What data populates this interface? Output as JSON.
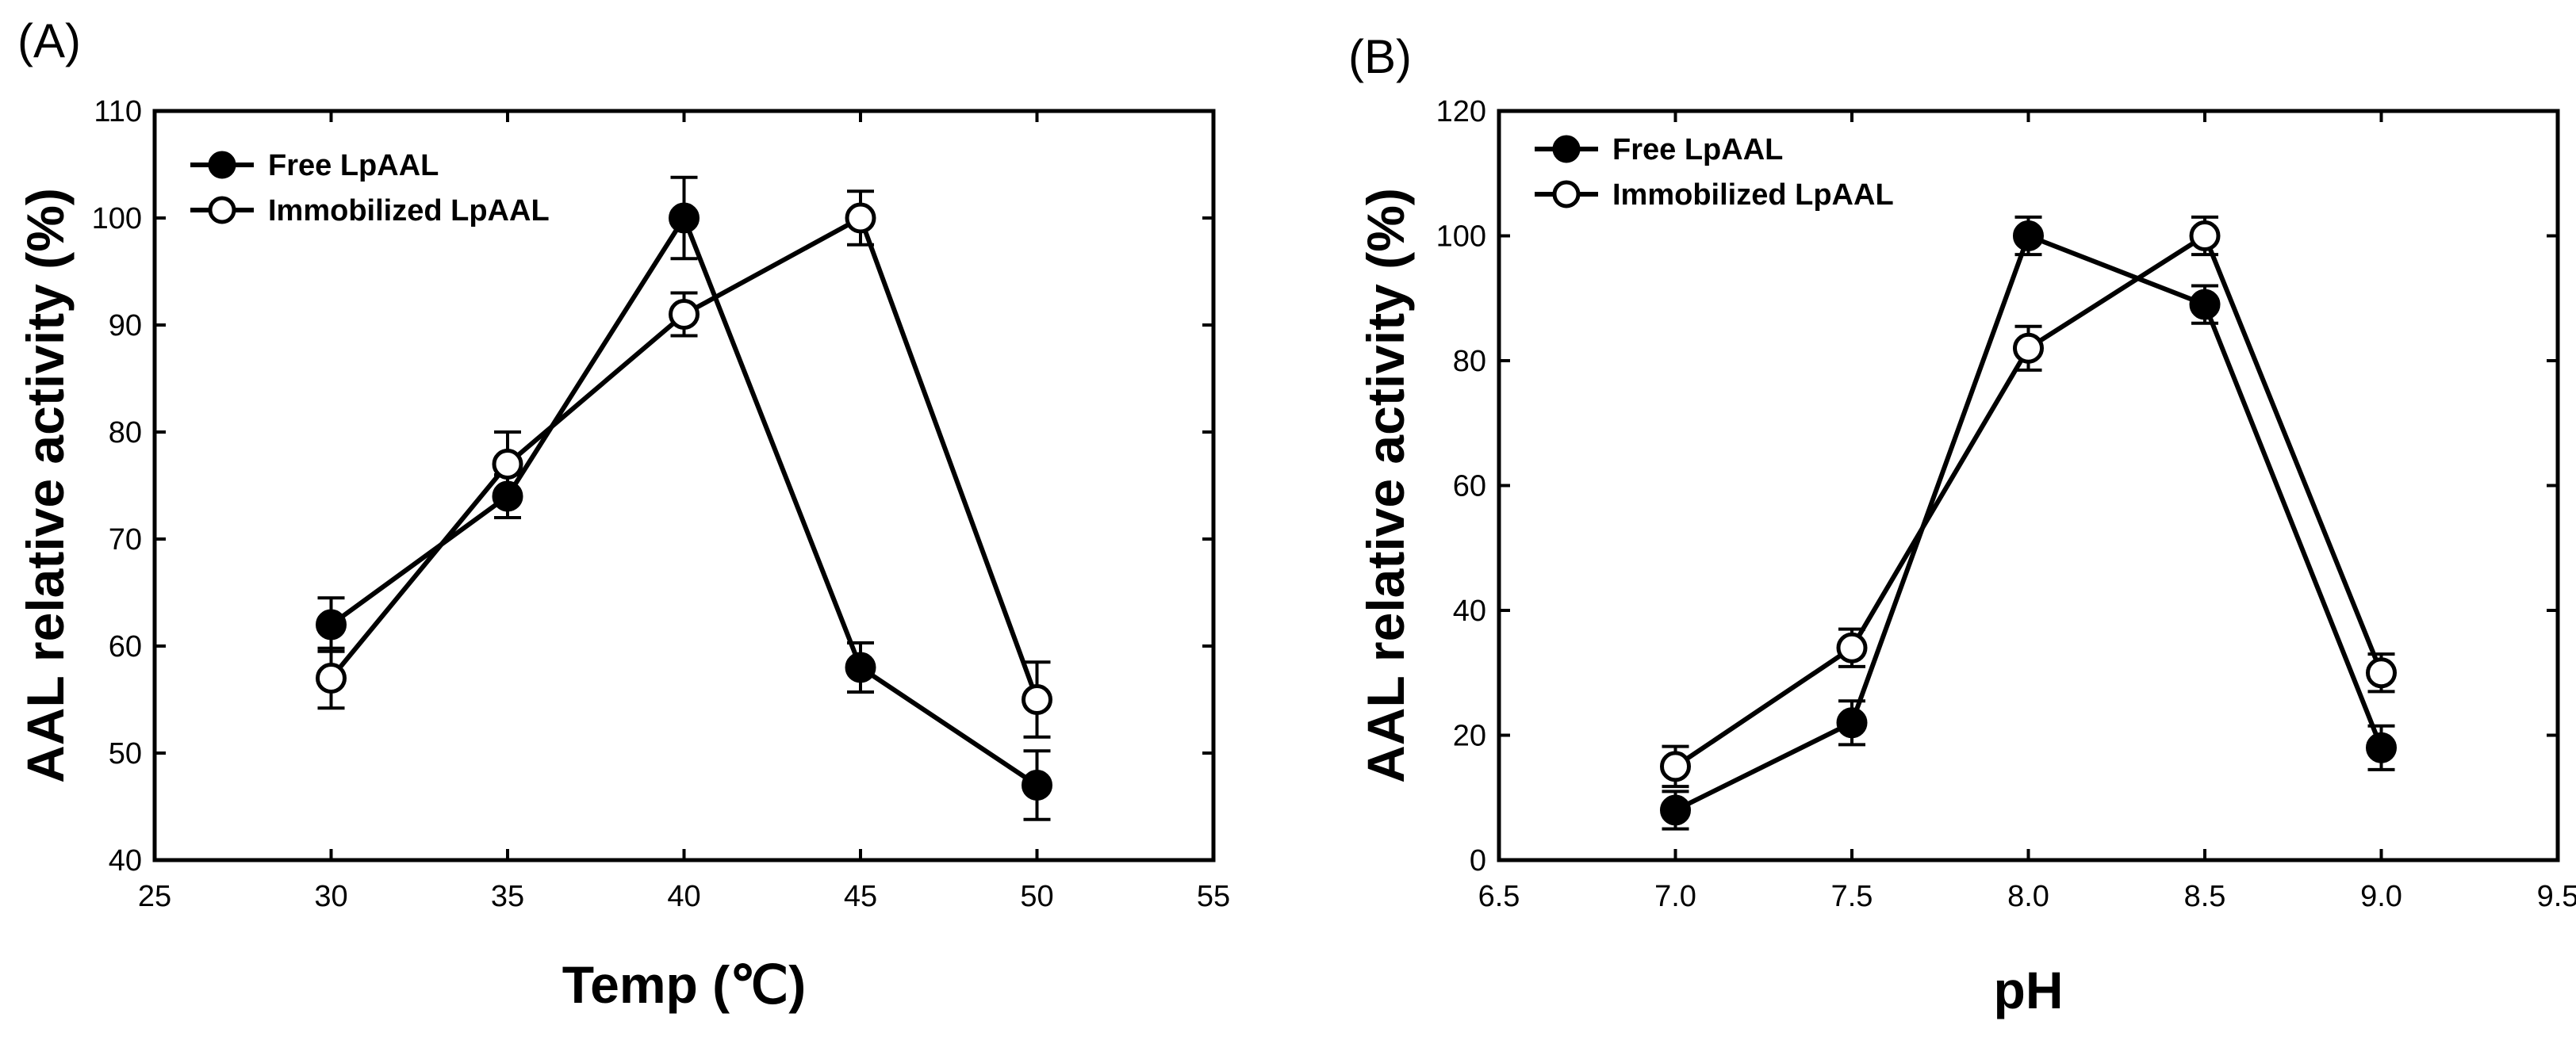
{
  "chart_data": [
    {
      "type": "line",
      "panel_label": "(A)",
      "xlabel": "Temp (℃)",
      "ylabel": "AAL relative activity (%)",
      "xlim": [
        25,
        55
      ],
      "ylim": [
        40,
        110
      ],
      "xticks": [
        25,
        30,
        35,
        40,
        45,
        50,
        55
      ],
      "yticks": [
        40,
        50,
        60,
        70,
        80,
        90,
        100,
        110
      ],
      "legend_position": "top-left",
      "x": [
        30,
        35,
        40,
        45,
        50
      ],
      "series": [
        {
          "name": "Free LpAAL",
          "marker": "filled",
          "values": [
            62,
            74,
            100,
            58,
            47
          ],
          "errors": [
            2.5,
            2,
            3.8,
            2.3,
            3.2
          ]
        },
        {
          "name": "Immobilized LpAAL",
          "marker": "open",
          "values": [
            57,
            77,
            91,
            100,
            55
          ],
          "errors": [
            2.8,
            3,
            2,
            2.5,
            3.5
          ]
        }
      ]
    },
    {
      "type": "line",
      "panel_label": "(B)",
      "xlabel": "pH",
      "ylabel": "AAL relative activity (%)",
      "xlim": [
        6.5,
        9.5
      ],
      "ylim": [
        0,
        120
      ],
      "xticks": [
        "6.5",
        "7.0",
        "7.5",
        "8.0",
        "8.5",
        "9.0",
        "9.5"
      ],
      "yticks": [
        0,
        20,
        40,
        60,
        80,
        100,
        120
      ],
      "legend_position": "top-left",
      "x": [
        7.0,
        7.5,
        8.0,
        8.5,
        9.0
      ],
      "series": [
        {
          "name": "Free LpAAL",
          "marker": "filled",
          "values": [
            8,
            22,
            100,
            89,
            18
          ],
          "errors": [
            3,
            3.5,
            3,
            3,
            3.5
          ]
        },
        {
          "name": "Immobilized LpAAL",
          "marker": "open",
          "values": [
            15,
            34,
            82,
            100,
            30
          ],
          "errors": [
            3.2,
            3,
            3.5,
            3,
            3
          ]
        }
      ]
    }
  ]
}
